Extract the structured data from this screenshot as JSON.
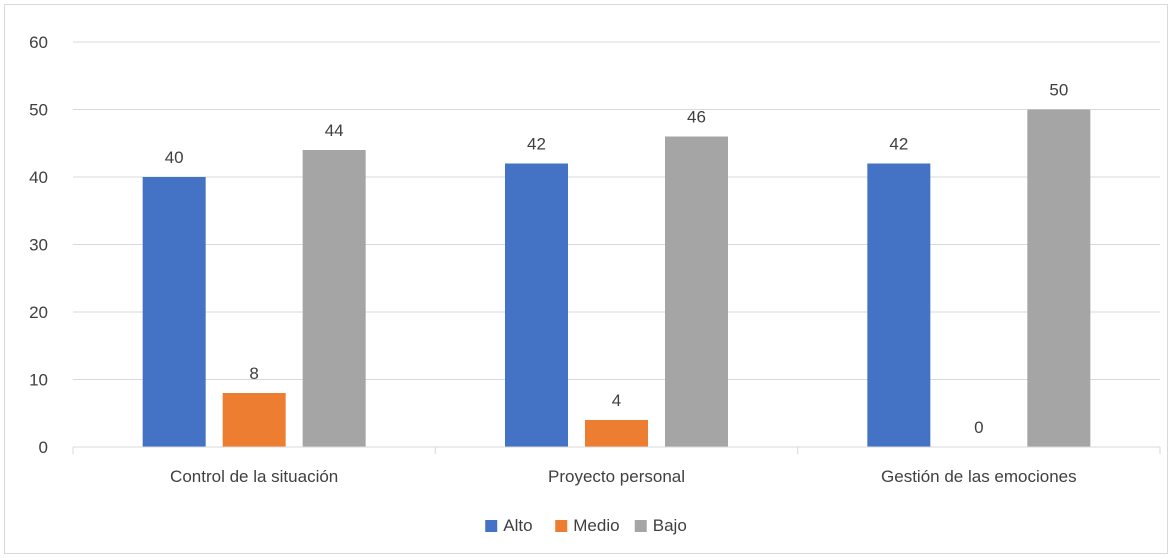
{
  "chart_data": {
    "type": "bar",
    "title": "",
    "xlabel": "",
    "ylabel": "",
    "categories": [
      "Control de la situación",
      "Proyecto personal",
      "Gestión de las emociones"
    ],
    "series": [
      {
        "name": "Alto",
        "color": "#4472c4",
        "values": [
          40,
          42,
          42
        ]
      },
      {
        "name": "Medio",
        "color": "#ed7d31",
        "values": [
          8,
          4,
          0
        ]
      },
      {
        "name": "Bajo",
        "color": "#a5a5a5",
        "values": [
          44,
          46,
          50
        ]
      }
    ],
    "ylim": [
      0,
      60
    ],
    "yticks": [
      0,
      10,
      20,
      30,
      40,
      50,
      60
    ],
    "grid": true,
    "legend_position": "bottom",
    "data_labels": true
  }
}
